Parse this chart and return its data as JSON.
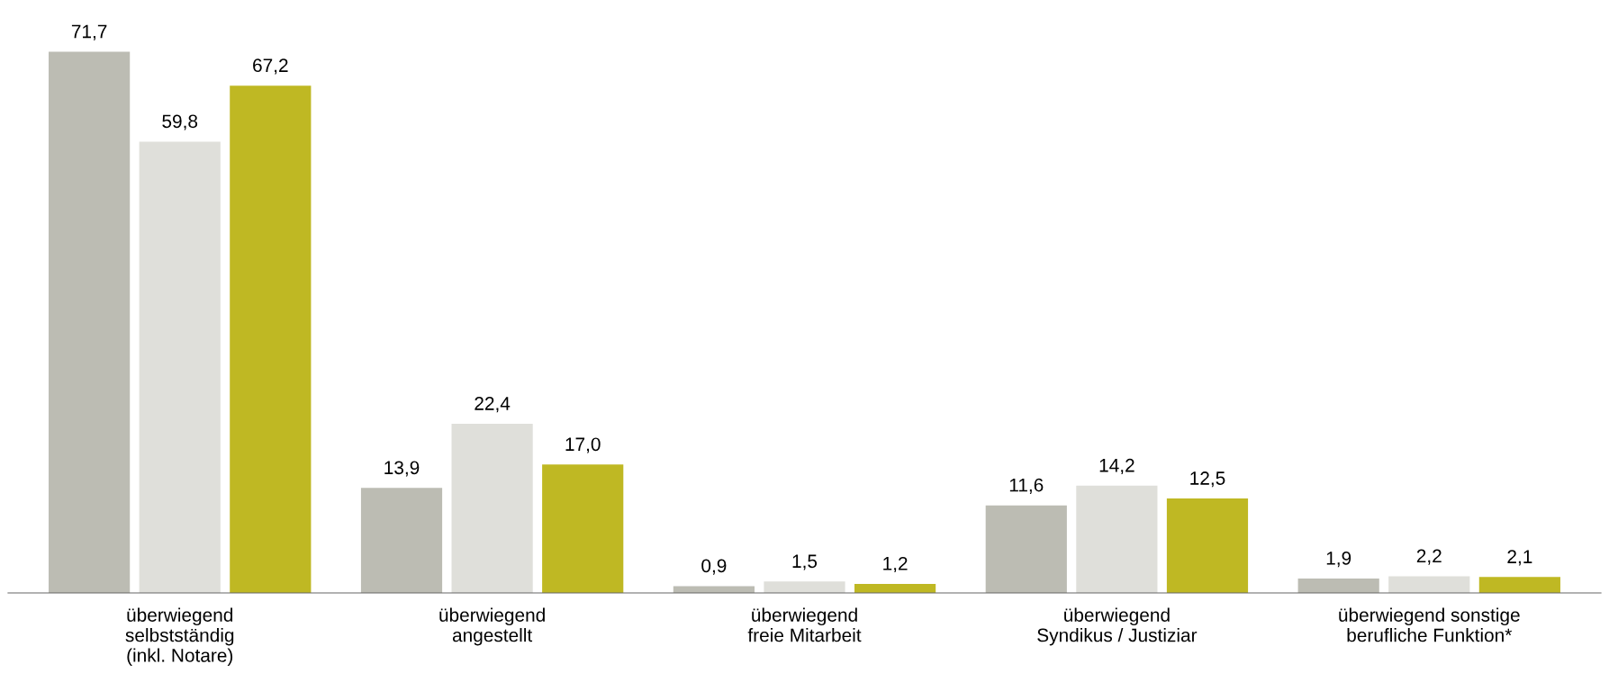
{
  "chart_data": {
    "type": "bar",
    "categories": [
      "überwiegend\nselbstständig\n(inkl. Notare)",
      "überwiegend\nangestellt",
      "überwiegend\nfreie Mitarbeit",
      "überwiegend\nSyndikus / Justiziar",
      "überwiegend sonstige\nberufliche Funktion*"
    ],
    "series": [
      {
        "color": "#bcbcb3",
        "values": [
          71.7,
          13.9,
          0.9,
          11.6,
          1.9
        ],
        "value_labels": [
          "71,7",
          "13,9",
          "0,9",
          "11,6",
          "1,9"
        ]
      },
      {
        "color": "#dfdfda",
        "values": [
          59.8,
          22.4,
          1.5,
          14.2,
          2.2
        ],
        "value_labels": [
          "59,8",
          "22,4",
          "1,5",
          "14,2",
          "2,2"
        ]
      },
      {
        "color": "#bfb823",
        "values": [
          67.2,
          17.0,
          1.2,
          12.5,
          2.1
        ],
        "value_labels": [
          "67,2",
          "17,0",
          "1,2",
          "12,5",
          "2,1"
        ]
      }
    ],
    "grid": false,
    "legend": false
  }
}
